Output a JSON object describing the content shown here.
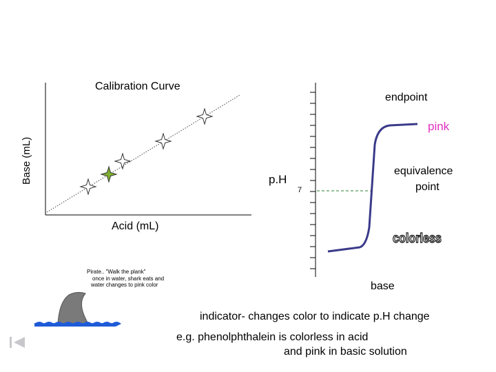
{
  "calibration": {
    "title": "Calibration Curve",
    "ylabel": "Base (mL)",
    "xlabel": "Acid (mL)"
  },
  "titration": {
    "endpoint_label": "endpoint",
    "pink_label": "pink",
    "equivalence_label_line1": "equivalence",
    "equivalence_label_line2": "point",
    "ph_label": "p.H",
    "seven_label": "7",
    "colorless_label": "colorless",
    "base_label": "base"
  },
  "pirate": {
    "line1": "Pirate.. \"Walk the plank\"",
    "line2": "once in water, shark eats and",
    "line3": "water changes to pink color"
  },
  "notes": {
    "indicator": "indicator- changes color to indicate p.H change",
    "example_line1": "e.g. phenolphthalein is colorless in acid",
    "example_line2": "and pink in basic solution"
  },
  "colors": {
    "pink": "#e030c0",
    "curve": "#3a3a8a",
    "dashed": "#2e7d32",
    "shark": "#7a7a7a",
    "water": "#1e5bd8",
    "highlight_star": "#7fb030"
  },
  "icons": {
    "nav": "first-slide-icon"
  }
}
